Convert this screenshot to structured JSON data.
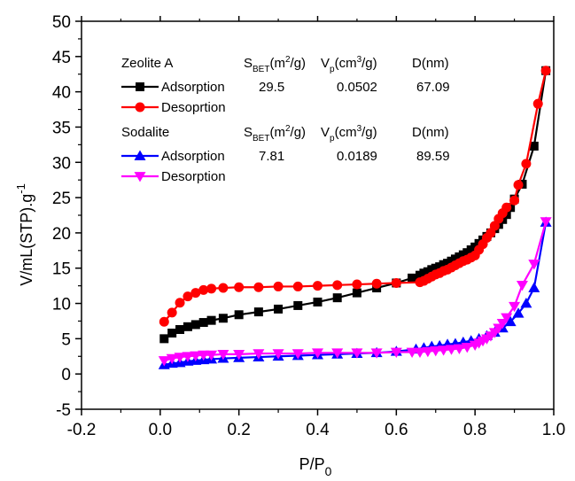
{
  "chart_data": {
    "type": "line",
    "xlabel": "P/P0",
    "xlabel_main": "P/P",
    "xlabel_sub": "0",
    "ylabel": "V/mL(STP).g-1",
    "ylabel_main": "V/mL(STP).g",
    "ylabel_sup": "-1",
    "xlim": [
      -0.2,
      1.0
    ],
    "ylim": [
      -5,
      50
    ],
    "x_ticks": [
      -0.2,
      0.0,
      0.2,
      0.4,
      0.6,
      0.8,
      1.0
    ],
    "x_tick_labels": [
      "-0.2",
      "0.0",
      "0.2",
      "0.4",
      "0.6",
      "0.8",
      "1.0"
    ],
    "y_ticks": [
      -5,
      0,
      5,
      10,
      15,
      20,
      25,
      30,
      35,
      40,
      45,
      50
    ],
    "y_tick_labels": [
      "-5",
      "0",
      "5",
      "10",
      "15",
      "20",
      "25",
      "30",
      "35",
      "40",
      "45",
      "50"
    ],
    "grid": false,
    "legend_placement": "top-left",
    "legend": {
      "groups": [
        {
          "title": "Zeolite A",
          "headers": {
            "sbet_main": "S",
            "sbet_sub": "BET",
            "sbet_rest": "(m",
            "sbet_sup": "2",
            "sbet_end": "/g)",
            "vp_main": "V",
            "vp_sub": "p",
            "vp_rest": "(cm",
            "vp_sup": "3",
            "vp_end": "/g)",
            "d": "D(nm)"
          },
          "rows": [
            {
              "label": "Adsorption",
              "sbet": "29.5",
              "vp": "0.0502",
              "d": "67.09"
            },
            {
              "label": "Desoprtion"
            }
          ]
        },
        {
          "title": "Sodalite",
          "headers": {
            "sbet_main": "S",
            "sbet_sub": "BET",
            "sbet_rest": "(m",
            "sbet_sup": "2",
            "sbet_end": "/g)",
            "vp_main": "V",
            "vp_sub": "p",
            "vp_rest": "(cm",
            "vp_sup": "3",
            "vp_end": "/g)",
            "d": "D(nm)"
          },
          "rows": [
            {
              "label": "Adsorption",
              "sbet": "7.81",
              "vp": "0.0189",
              "d": "89.59"
            },
            {
              "label": "Desorption"
            }
          ]
        }
      ]
    },
    "series": [
      {
        "name": "Adsorption",
        "color": "#000000",
        "marker": "square",
        "x": [
          0.01,
          0.03,
          0.05,
          0.07,
          0.09,
          0.11,
          0.13,
          0.16,
          0.2,
          0.25,
          0.3,
          0.35,
          0.4,
          0.45,
          0.5,
          0.55,
          0.6,
          0.64,
          0.66,
          0.67,
          0.68,
          0.69,
          0.7,
          0.71,
          0.72,
          0.73,
          0.74,
          0.75,
          0.76,
          0.77,
          0.78,
          0.79,
          0.8,
          0.81,
          0.82,
          0.83,
          0.84,
          0.85,
          0.86,
          0.87,
          0.88,
          0.89,
          0.9,
          0.92,
          0.95,
          0.98
        ],
        "y": [
          5.0,
          5.8,
          6.3,
          6.7,
          7.0,
          7.3,
          7.6,
          7.9,
          8.4,
          8.8,
          9.2,
          9.7,
          10.2,
          10.8,
          11.5,
          12.2,
          12.9,
          13.6,
          14.0,
          14.3,
          14.5,
          14.8,
          15.0,
          15.2,
          15.5,
          15.7,
          16.0,
          16.3,
          16.6,
          16.9,
          17.2,
          17.6,
          18.0,
          18.5,
          19.0,
          19.5,
          20.0,
          20.6,
          21.2,
          21.9,
          22.6,
          23.6,
          24.8,
          26.9,
          32.3,
          43.0
        ]
      },
      {
        "name": "Desoprtion",
        "color": "#ff0000",
        "marker": "circle",
        "x": [
          0.98,
          0.96,
          0.93,
          0.91,
          0.9,
          0.88,
          0.87,
          0.86,
          0.85,
          0.84,
          0.83,
          0.82,
          0.81,
          0.8,
          0.79,
          0.78,
          0.77,
          0.76,
          0.75,
          0.74,
          0.73,
          0.72,
          0.71,
          0.7,
          0.69,
          0.68,
          0.67,
          0.66,
          0.6,
          0.55,
          0.5,
          0.45,
          0.4,
          0.35,
          0.3,
          0.25,
          0.2,
          0.16,
          0.13,
          0.11,
          0.09,
          0.07,
          0.05,
          0.03,
          0.01
        ],
        "y": [
          43.0,
          38.3,
          29.8,
          26.8,
          24.6,
          23.6,
          22.8,
          22.0,
          21.0,
          20.0,
          19.3,
          18.4,
          17.6,
          16.8,
          16.5,
          16.2,
          16.0,
          15.7,
          15.4,
          15.1,
          14.8,
          14.6,
          14.3,
          14.1,
          13.8,
          13.5,
          13.2,
          13.0,
          12.9,
          12.8,
          12.7,
          12.6,
          12.5,
          12.4,
          12.4,
          12.3,
          12.3,
          12.2,
          12.1,
          11.9,
          11.5,
          11.0,
          10.1,
          8.7,
          7.4
        ]
      },
      {
        "name": "Adsorption",
        "color": "#0000ff",
        "marker": "triangle-up",
        "x": [
          0.01,
          0.03,
          0.05,
          0.07,
          0.09,
          0.11,
          0.13,
          0.16,
          0.2,
          0.25,
          0.3,
          0.35,
          0.4,
          0.45,
          0.5,
          0.55,
          0.6,
          0.65,
          0.67,
          0.69,
          0.71,
          0.73,
          0.75,
          0.77,
          0.79,
          0.81,
          0.83,
          0.85,
          0.87,
          0.89,
          0.91,
          0.93,
          0.95,
          0.98
        ],
        "y": [
          1.3,
          1.5,
          1.6,
          1.8,
          1.9,
          2.0,
          2.1,
          2.2,
          2.3,
          2.4,
          2.5,
          2.6,
          2.7,
          2.8,
          2.9,
          3.0,
          3.2,
          3.5,
          3.7,
          3.9,
          4.0,
          4.2,
          4.3,
          4.5,
          4.7,
          5.0,
          5.4,
          5.9,
          6.5,
          7.4,
          8.6,
          10.0,
          12.2,
          21.5
        ]
      },
      {
        "name": "Desorption",
        "color": "#ff00ff",
        "marker": "triangle-down",
        "x": [
          0.98,
          0.95,
          0.92,
          0.9,
          0.88,
          0.87,
          0.86,
          0.85,
          0.84,
          0.83,
          0.82,
          0.81,
          0.8,
          0.78,
          0.76,
          0.74,
          0.72,
          0.7,
          0.68,
          0.66,
          0.64,
          0.6,
          0.55,
          0.5,
          0.45,
          0.4,
          0.35,
          0.3,
          0.25,
          0.2,
          0.16,
          0.13,
          0.11,
          0.09,
          0.07,
          0.05,
          0.03,
          0.01
        ],
        "y": [
          21.6,
          15.6,
          12.6,
          9.6,
          8.0,
          7.2,
          6.5,
          5.9,
          5.4,
          5.0,
          4.7,
          4.4,
          4.1,
          3.8,
          3.6,
          3.5,
          3.4,
          3.3,
          3.2,
          3.1,
          3.1,
          3.1,
          3.0,
          3.0,
          3.0,
          3.0,
          2.9,
          2.9,
          2.9,
          2.8,
          2.8,
          2.7,
          2.7,
          2.6,
          2.5,
          2.4,
          2.2,
          1.9
        ]
      }
    ]
  }
}
